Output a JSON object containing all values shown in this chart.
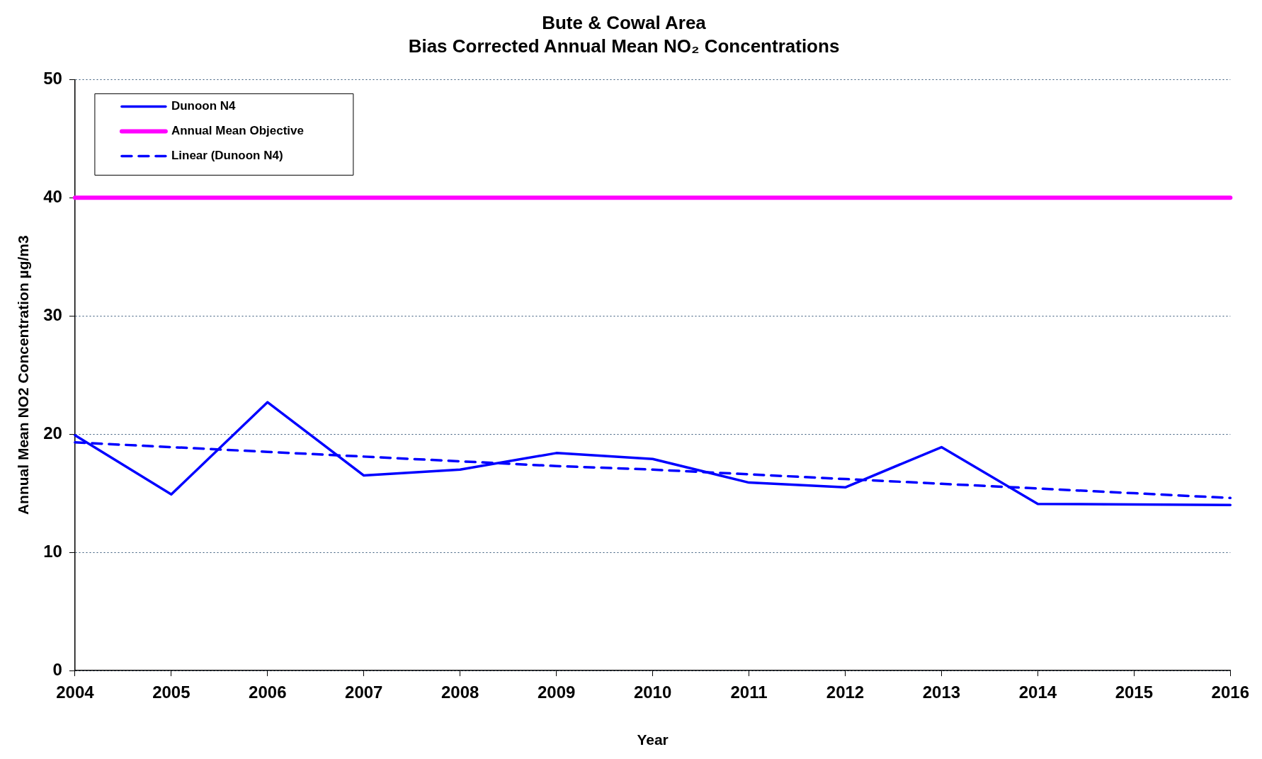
{
  "chart_data": {
    "type": "line",
    "title": "Bute & Cowal Area",
    "subtitle": "Bias Corrected Annual Mean NO₂ Concentrations",
    "xlabel": "Year",
    "ylabel": "Annual Mean NO2 Concentration µg/m3",
    "x": [
      2004,
      2005,
      2006,
      2007,
      2008,
      2009,
      2010,
      2011,
      2012,
      2013,
      2014,
      2015,
      2016
    ],
    "series": [
      {
        "name": "Dunoon N4",
        "color": "#0000ff",
        "values": [
          19.9,
          14.9,
          22.7,
          16.5,
          17.0,
          18.4,
          17.9,
          15.9,
          15.5,
          18.9,
          14.1,
          14.05,
          14.0
        ],
        "line_style": "solid"
      },
      {
        "name": "Linear (Dunoon N4)",
        "color": "#0000ff",
        "type": "line",
        "values": [
          19.3,
          18.9,
          18.5,
          18.1,
          17.7,
          17.3,
          17.0,
          16.6,
          16.2,
          15.8,
          15.4,
          15.0,
          14.6
        ],
        "line_style": "dashed"
      }
    ],
    "ref_lines": [
      {
        "axis": "y",
        "value": 40,
        "label": "Annual Mean Objective",
        "color": "#ff00ff",
        "line_style": "solid"
      }
    ],
    "xlim": [
      2004,
      2016
    ],
    "xticks": [
      2004,
      2005,
      2006,
      2007,
      2008,
      2009,
      2010,
      2011,
      2012,
      2013,
      2014,
      2015,
      2016
    ],
    "ylim": [
      0,
      50
    ],
    "yticks": [
      0,
      10,
      20,
      30,
      40,
      50
    ],
    "grid": "y",
    "legend": "top left",
    "marker": "none"
  }
}
